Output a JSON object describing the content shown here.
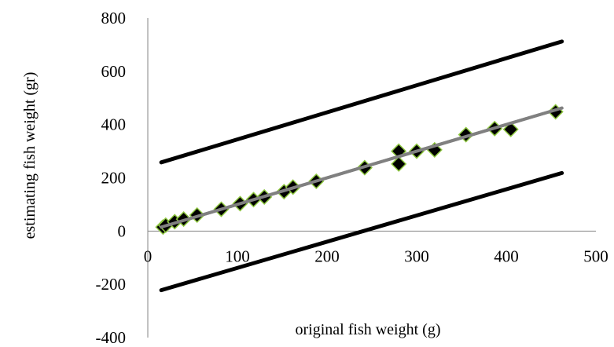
{
  "chart_data": {
    "type": "scatter",
    "title": "",
    "xlabel": "original fish weight (g)",
    "ylabel": "estimating fish weight (gr)",
    "xlim": [
      0,
      500
    ],
    "ylim": [
      -400,
      800
    ],
    "xticks": [
      0,
      100,
      200,
      300,
      400,
      500
    ],
    "yticks": [
      -400,
      -200,
      0,
      200,
      400,
      600,
      800
    ],
    "grid": false,
    "legend": "none",
    "series": [
      {
        "kind": "scatter",
        "marker": "diamond",
        "color": "#000000",
        "edge_color": "#8dc63f",
        "x": [
          17,
          20,
          30,
          40,
          55,
          82,
          103,
          118,
          130,
          152,
          162,
          188,
          242,
          280,
          280,
          300,
          320,
          355,
          387,
          405,
          455
        ],
        "y": [
          15,
          22,
          35,
          45,
          60,
          82,
          103,
          118,
          128,
          148,
          165,
          187,
          238,
          300,
          252,
          300,
          305,
          362,
          385,
          382,
          448
        ]
      },
      {
        "kind": "line",
        "role": "fit",
        "color": "#808080",
        "x": [
          15,
          462
        ],
        "y": [
          15,
          462
        ]
      },
      {
        "kind": "line",
        "role": "upper-limit",
        "color": "#000000",
        "x": [
          15,
          462
        ],
        "y": [
          258,
          712
        ]
      },
      {
        "kind": "line",
        "role": "lower-limit",
        "color": "#000000",
        "x": [
          15,
          462
        ],
        "y": [
          -222,
          218
        ]
      }
    ]
  }
}
